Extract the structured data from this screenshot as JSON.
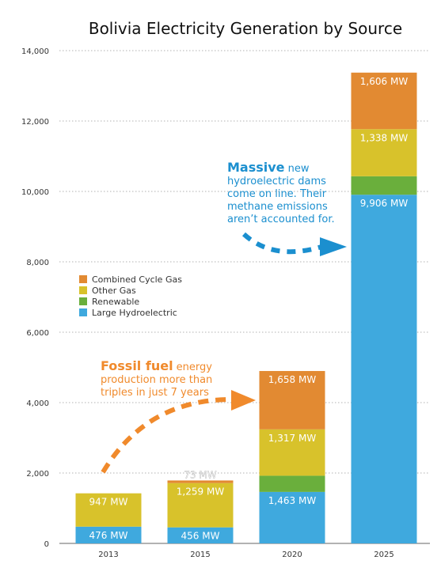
{
  "chart_data": {
    "type": "bar",
    "title": "Bolivia Electricity Generation by Source",
    "categories": [
      "2013",
      "2015",
      "2020",
      "2025"
    ],
    "ylim": [
      0,
      14000
    ],
    "yticks": [
      "0",
      "2,000",
      "4,000",
      "6,000",
      "8,000",
      "10,000",
      "12,000",
      "14,000"
    ],
    "grid": true,
    "legend_position": "left-middle",
    "series": [
      {
        "name": "Large Hydroelectric",
        "color": "#3fa9de",
        "values": [
          476,
          456,
          1463,
          9906
        ],
        "labels": [
          "476 MW",
          "456 MW",
          "1,463 MW",
          "9,906 MW"
        ]
      },
      {
        "name": "Renewable",
        "color": "#6aaf3c",
        "values": [
          0,
          0,
          460,
          525
        ],
        "labels": [
          "",
          "",
          "",
          ""
        ]
      },
      {
        "name": "Other Gas",
        "color": "#d8c22b",
        "values": [
          947,
          1259,
          1317,
          1338
        ],
        "labels": [
          "947 MW",
          "1,259 MW",
          "1,317 MW",
          "1,338 MW"
        ]
      },
      {
        "name": "Combined Cycle Gas",
        "color": "#e28a32",
        "values": [
          0,
          73,
          1658,
          1606
        ],
        "labels": [
          "",
          "73 MW",
          "1,658 MW",
          "1,606 MW"
        ]
      }
    ],
    "legend_order": [
      "Combined Cycle Gas",
      "Other Gas",
      "Renewable",
      "Large Hydroelectric"
    ]
  },
  "annotations": {
    "hydro_bold": "Massive",
    "hydro_text": " new hydroelectric dams come on line. Their methane emissions aren’t accounted for.",
    "fossil_bold": "Fossil fuel",
    "fossil_text": " energy production more than triples in just 7 years"
  },
  "colors": {
    "hydro_arrow": "#1b8fcf",
    "fossil_arrow": "#f08a2c"
  }
}
